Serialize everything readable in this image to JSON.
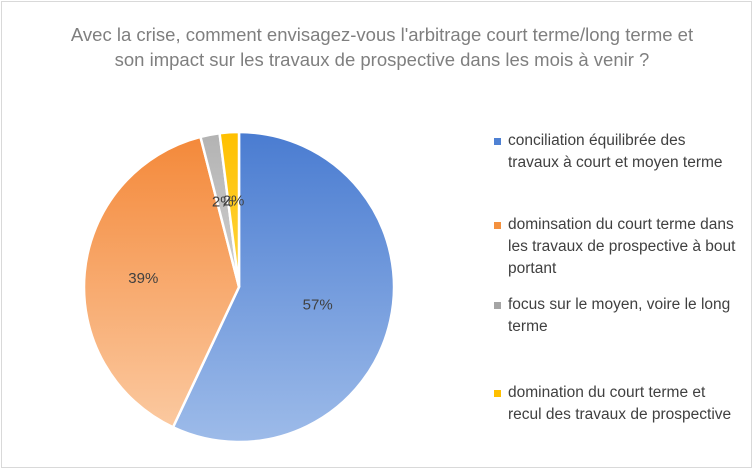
{
  "chart_data": {
    "type": "pie",
    "title": "Avec la crise, comment envisagez-vous l'arbitrage court terme/long terme et son impact sur les travaux de prospective dans les mois à venir ?",
    "legend_position": "right",
    "slices": [
      {
        "label": "conciliation équilibrée des travaux à court et moyen terme",
        "value": 57,
        "data_label": "57%",
        "color": "#4f81d3"
      },
      {
        "label": "dominsation du court terme dans les travaux de prospective à bout portant",
        "value": 39,
        "data_label": "39%",
        "color": "#f4913e"
      },
      {
        "label": "focus sur le moyen, voire le long terme",
        "value": 2,
        "data_label": "2%",
        "color": "#a5a5a5"
      },
      {
        "label": "domination du court terme et recul des travaux de prospective",
        "value": 2,
        "data_label": "2%",
        "color": "#ffc000"
      }
    ]
  }
}
